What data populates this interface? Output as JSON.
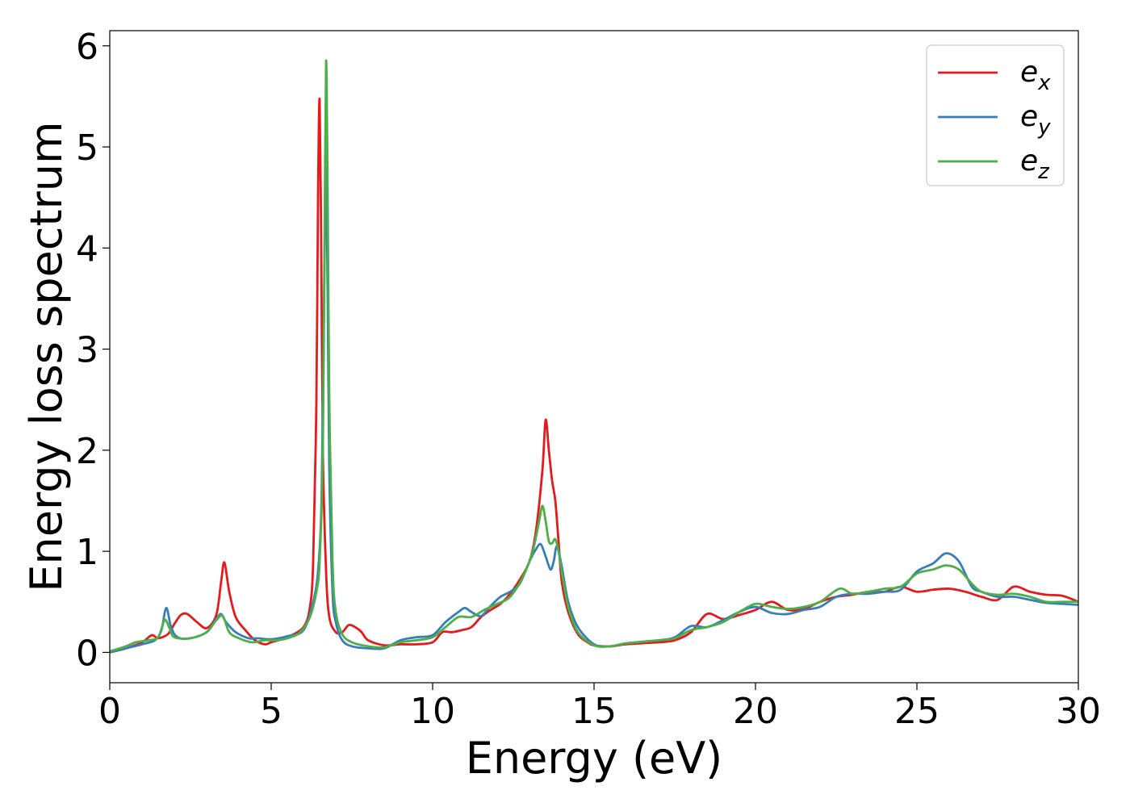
{
  "chart_data": {
    "type": "line",
    "xlabel": "Energy (eV)",
    "ylabel": "Energy loss spectrum",
    "xlim": [
      0,
      30
    ],
    "ylim": [
      -0.3,
      6.15
    ],
    "x_ticks": [
      "0",
      "5",
      "10",
      "15",
      "20",
      "25",
      "30"
    ],
    "y_ticks": [
      "0",
      "1",
      "2",
      "3",
      "4",
      "5",
      "6"
    ],
    "grid": false,
    "legend_position": "top-right",
    "series": [
      {
        "name": "e",
        "subscript": "x",
        "color": "#e41a1c",
        "x": [
          0,
          0.5,
          1.0,
          1.3,
          1.5,
          1.8,
          2.0,
          2.2,
          2.4,
          2.7,
          3.0,
          3.3,
          3.45,
          3.55,
          3.7,
          3.9,
          4.2,
          4.5,
          4.8,
          5.0,
          5.5,
          6.0,
          6.2,
          6.3,
          6.4,
          6.45,
          6.5,
          6.55,
          6.6,
          6.7,
          6.8,
          7.0,
          7.2,
          7.4,
          7.6,
          7.8,
          8.0,
          8.5,
          9.0,
          9.5,
          10.0,
          10.3,
          10.6,
          10.9,
          11.2,
          11.5,
          11.8,
          12.1,
          12.4,
          12.7,
          13.0,
          13.2,
          13.4,
          13.5,
          13.6,
          13.7,
          13.8,
          13.9,
          14.0,
          14.2,
          14.5,
          14.8,
          15.0,
          15.5,
          16.0,
          17.0,
          17.5,
          18.0,
          18.5,
          19.0,
          19.5,
          20.0,
          20.5,
          21.0,
          21.5,
          22.0,
          22.5,
          23.0,
          23.5,
          24.0,
          24.5,
          25.0,
          25.5,
          26.0,
          26.5,
          27.0,
          27.5,
          28.0,
          28.5,
          29.0,
          29.5,
          30.0
        ],
        "y": [
          0.0,
          0.04,
          0.1,
          0.17,
          0.14,
          0.18,
          0.28,
          0.37,
          0.38,
          0.3,
          0.24,
          0.37,
          0.7,
          0.89,
          0.6,
          0.35,
          0.22,
          0.12,
          0.08,
          0.1,
          0.15,
          0.25,
          0.45,
          0.9,
          2.5,
          4.5,
          5.47,
          4.0,
          2.0,
          0.8,
          0.35,
          0.2,
          0.2,
          0.27,
          0.25,
          0.2,
          0.12,
          0.07,
          0.08,
          0.08,
          0.1,
          0.2,
          0.2,
          0.22,
          0.25,
          0.35,
          0.42,
          0.48,
          0.58,
          0.72,
          0.9,
          1.2,
          1.8,
          2.3,
          2.0,
          1.7,
          1.5,
          1.1,
          0.7,
          0.4,
          0.18,
          0.1,
          0.07,
          0.06,
          0.08,
          0.1,
          0.12,
          0.2,
          0.38,
          0.33,
          0.37,
          0.42,
          0.5,
          0.42,
          0.43,
          0.5,
          0.55,
          0.57,
          0.6,
          0.6,
          0.65,
          0.6,
          0.62,
          0.63,
          0.6,
          0.55,
          0.52,
          0.65,
          0.6,
          0.57,
          0.56,
          0.5
        ]
      },
      {
        "name": "e",
        "subscript": "y",
        "color": "#377eb8",
        "x": [
          0,
          0.5,
          1.0,
          1.4,
          1.6,
          1.75,
          1.9,
          2.1,
          2.5,
          3.0,
          3.3,
          3.45,
          3.6,
          3.9,
          4.3,
          4.6,
          5.0,
          5.5,
          6.0,
          6.3,
          6.45,
          6.55,
          6.6,
          6.65,
          6.7,
          6.75,
          6.8,
          6.9,
          7.0,
          7.2,
          7.5,
          8.0,
          8.5,
          9.0,
          9.5,
          10.0,
          10.4,
          10.8,
          11.0,
          11.2,
          11.5,
          11.8,
          12.1,
          12.4,
          12.7,
          13.0,
          13.2,
          13.35,
          13.5,
          13.65,
          13.75,
          13.85,
          14.0,
          14.2,
          14.5,
          15.0,
          15.5,
          16.0,
          17.0,
          17.5,
          18.0,
          18.5,
          19.0,
          19.5,
          20.0,
          20.5,
          21.0,
          21.5,
          22.0,
          22.5,
          23.0,
          23.5,
          24.0,
          24.5,
          25.0,
          25.5,
          25.9,
          26.3,
          26.7,
          27.0,
          27.5,
          28.0,
          28.5,
          29.0,
          29.5,
          30.0
        ],
        "y": [
          0.0,
          0.04,
          0.08,
          0.12,
          0.22,
          0.44,
          0.25,
          0.15,
          0.14,
          0.2,
          0.33,
          0.38,
          0.3,
          0.2,
          0.14,
          0.14,
          0.13,
          0.16,
          0.22,
          0.5,
          0.8,
          1.4,
          2.5,
          3.8,
          4.8,
          3.5,
          1.8,
          0.6,
          0.3,
          0.12,
          0.06,
          0.04,
          0.04,
          0.12,
          0.15,
          0.17,
          0.3,
          0.4,
          0.44,
          0.4,
          0.36,
          0.46,
          0.55,
          0.6,
          0.68,
          0.9,
          1.02,
          1.07,
          0.95,
          0.82,
          0.9,
          1.05,
          0.85,
          0.5,
          0.25,
          0.08,
          0.06,
          0.09,
          0.12,
          0.15,
          0.26,
          0.25,
          0.32,
          0.4,
          0.45,
          0.39,
          0.38,
          0.42,
          0.45,
          0.55,
          0.58,
          0.58,
          0.6,
          0.62,
          0.8,
          0.88,
          0.98,
          0.9,
          0.65,
          0.6,
          0.55,
          0.55,
          0.52,
          0.49,
          0.48,
          0.47
        ]
      },
      {
        "name": "e",
        "subscript": "z",
        "color": "#4daf4a",
        "x": [
          0,
          0.5,
          0.8,
          1.2,
          1.5,
          1.7,
          1.85,
          2.0,
          2.5,
          3.0,
          3.3,
          3.5,
          3.7,
          4.0,
          4.4,
          4.8,
          5.2,
          5.6,
          5.9,
          6.2,
          6.4,
          6.5,
          6.6,
          6.65,
          6.7,
          6.75,
          6.8,
          6.9,
          7.0,
          7.2,
          7.5,
          8.0,
          8.5,
          9.0,
          9.5,
          10.0,
          10.4,
          10.8,
          11.2,
          11.6,
          12.0,
          12.4,
          12.8,
          13.1,
          13.3,
          13.4,
          13.5,
          13.6,
          13.7,
          13.8,
          13.9,
          14.0,
          14.2,
          14.5,
          15.0,
          15.5,
          16.0,
          17.0,
          17.5,
          18.0,
          18.5,
          19.0,
          19.5,
          20.0,
          20.5,
          21.0,
          21.5,
          22.0,
          22.6,
          23.0,
          23.5,
          24.0,
          24.5,
          25.0,
          25.5,
          25.9,
          26.3,
          26.7,
          27.0,
          27.5,
          28.0,
          28.5,
          29.0,
          29.5,
          30.0
        ],
        "y": [
          0.01,
          0.06,
          0.1,
          0.12,
          0.15,
          0.32,
          0.24,
          0.15,
          0.14,
          0.2,
          0.32,
          0.36,
          0.2,
          0.14,
          0.1,
          0.12,
          0.12,
          0.15,
          0.2,
          0.35,
          0.6,
          0.9,
          2.0,
          4.0,
          5.85,
          4.5,
          2.5,
          0.9,
          0.4,
          0.18,
          0.1,
          0.06,
          0.05,
          0.1,
          0.12,
          0.15,
          0.25,
          0.35,
          0.35,
          0.42,
          0.48,
          0.55,
          0.75,
          1.0,
          1.3,
          1.45,
          1.3,
          1.1,
          1.08,
          1.12,
          1.0,
          0.8,
          0.45,
          0.2,
          0.07,
          0.06,
          0.09,
          0.12,
          0.14,
          0.22,
          0.25,
          0.3,
          0.4,
          0.48,
          0.45,
          0.43,
          0.45,
          0.5,
          0.63,
          0.58,
          0.6,
          0.63,
          0.65,
          0.78,
          0.82,
          0.86,
          0.82,
          0.68,
          0.6,
          0.57,
          0.58,
          0.55,
          0.5,
          0.5,
          0.5
        ]
      }
    ]
  }
}
